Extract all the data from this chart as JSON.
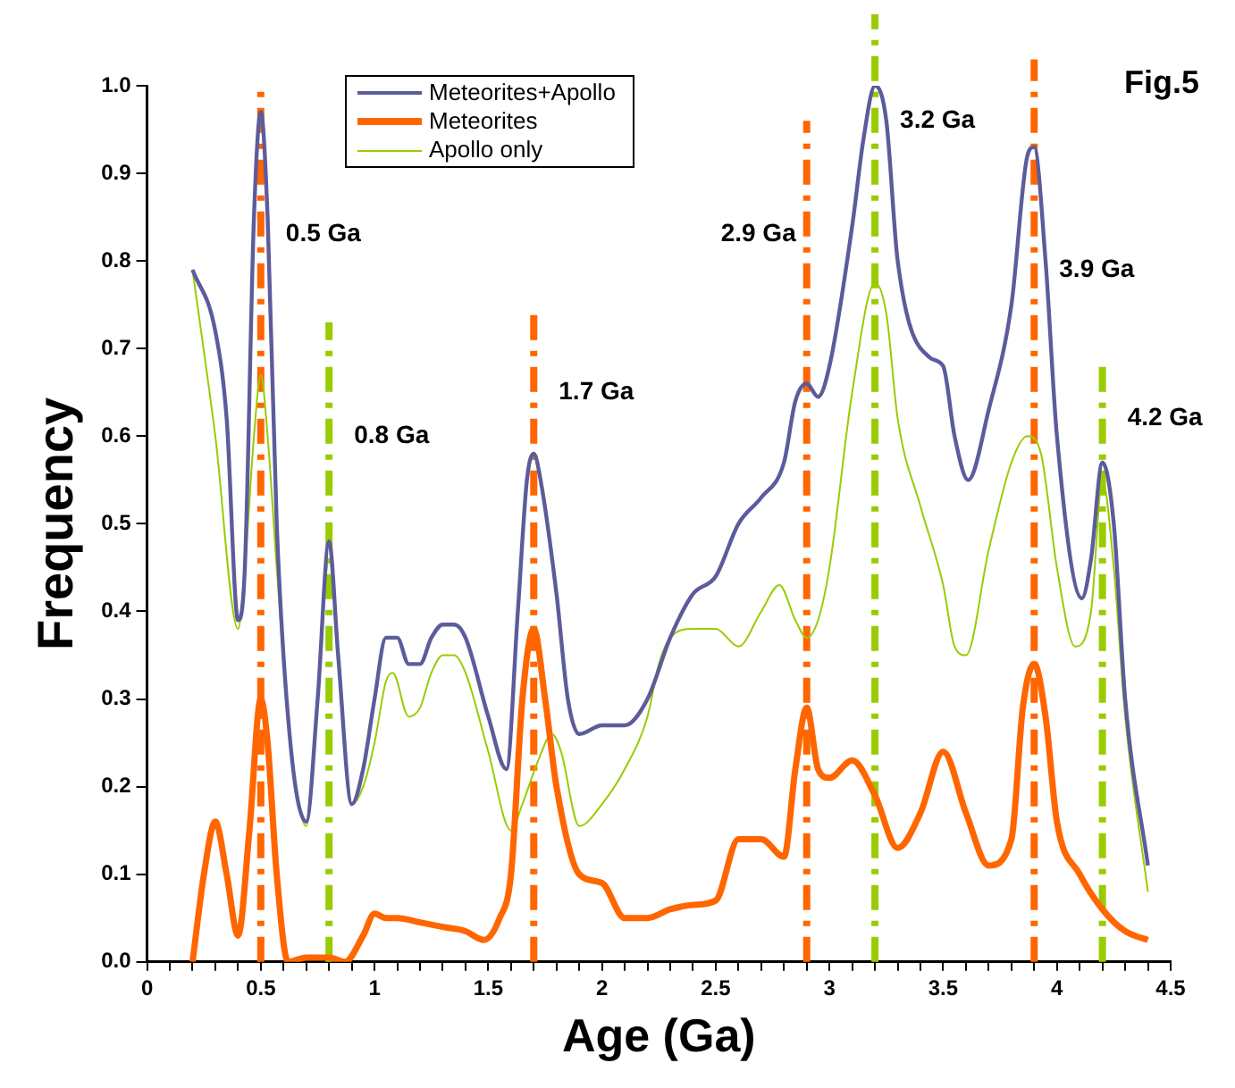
{
  "chart_data": {
    "type": "line",
    "title": "Fig.5",
    "xlabel": "Age (Ga)",
    "ylabel": "Frequency",
    "xlim": [
      0,
      4.5
    ],
    "ylim": [
      0,
      1.0
    ],
    "xticks": [
      0,
      {
        "value": 0.1,
        "label": null
      },
      {
        "value": 0.2,
        "label": null
      },
      {
        "value": 0.3,
        "label": null
      },
      {
        "value": 0.4,
        "label": null
      },
      0.5,
      {
        "value": 0.6,
        "label": null
      },
      {
        "value": 0.7,
        "label": null
      },
      {
        "value": 0.8,
        "label": null
      },
      {
        "value": 0.9,
        "label": null
      },
      1,
      {
        "value": 1.1,
        "label": null
      },
      {
        "value": 1.2,
        "label": null
      },
      {
        "value": 1.3,
        "label": null
      },
      {
        "value": 1.4,
        "label": null
      },
      1.5,
      {
        "value": 1.6,
        "label": null
      },
      {
        "value": 1.7,
        "label": null
      },
      {
        "value": 1.8,
        "label": null
      },
      {
        "value": 1.9,
        "label": null
      },
      2,
      {
        "value": 2.1,
        "label": null
      },
      {
        "value": 2.2,
        "label": null
      },
      {
        "value": 2.3,
        "label": null
      },
      {
        "value": 2.4,
        "label": null
      },
      2.5,
      {
        "value": 2.6,
        "label": null
      },
      {
        "value": 2.7,
        "label": null
      },
      {
        "value": 2.8,
        "label": null
      },
      {
        "value": 2.9,
        "label": null
      },
      3,
      {
        "value": 3.1,
        "label": null
      },
      {
        "value": 3.2,
        "label": null
      },
      {
        "value": 3.3,
        "label": null
      },
      {
        "value": 3.4,
        "label": null
      },
      3.5,
      {
        "value": 3.6,
        "label": null
      },
      {
        "value": 3.7,
        "label": null
      },
      {
        "value": 3.8,
        "label": null
      },
      {
        "value": 3.9,
        "label": null
      },
      4,
      {
        "value": 4.1,
        "label": null
      },
      {
        "value": 4.2,
        "label": null
      },
      {
        "value": 4.3,
        "label": null
      },
      {
        "value": 4.4,
        "label": null
      },
      4.5
    ],
    "yticks": [
      {
        "value": 0,
        "label": "0.0"
      },
      {
        "value": 0.1,
        "label": "0.1"
      },
      {
        "value": 0.2,
        "label": "0.2"
      },
      {
        "value": 0.3,
        "label": "0.3"
      },
      {
        "value": 0.4,
        "label": "0.4"
      },
      {
        "value": 0.5,
        "label": "0.5"
      },
      {
        "value": 0.6,
        "label": "0.6"
      },
      {
        "value": 0.7,
        "label": "0.7"
      },
      {
        "value": 0.8,
        "label": "0.8"
      },
      {
        "value": 0.9,
        "label": "0.9"
      },
      {
        "value": 1.0,
        "label": "1.0"
      }
    ],
    "grid": false,
    "legend": "top left",
    "marker": "none",
    "line_style": "solid",
    "series": [
      {
        "name": "Meteorites+Apollo",
        "color": "#5c5c9c",
        "x": [
          0.2,
          0.3,
          0.35,
          0.4,
          0.43,
          0.47,
          0.5,
          0.53,
          0.57,
          0.63,
          0.7,
          0.75,
          0.8,
          0.84,
          0.9,
          0.95,
          1.0,
          1.05,
          1.1,
          1.15,
          1.2,
          1.25,
          1.3,
          1.35,
          1.4,
          1.5,
          1.58,
          1.63,
          1.67,
          1.7,
          1.73,
          1.8,
          1.85,
          1.9,
          2.0,
          2.1,
          2.2,
          2.3,
          2.4,
          2.5,
          2.6,
          2.7,
          2.8,
          2.85,
          2.9,
          2.95,
          3.0,
          3.1,
          3.15,
          3.2,
          3.25,
          3.3,
          3.44,
          3.5,
          3.55,
          3.61,
          3.7,
          3.8,
          3.87,
          3.9,
          3.95,
          4.0,
          4.11,
          4.15,
          4.2,
          4.25,
          4.3,
          4.4
        ],
        "values": [
          0.79,
          0.72,
          0.62,
          0.39,
          0.45,
          0.85,
          0.97,
          0.85,
          0.5,
          0.25,
          0.16,
          0.3,
          0.48,
          0.35,
          0.18,
          0.22,
          0.3,
          0.37,
          0.37,
          0.34,
          0.34,
          0.37,
          0.385,
          0.385,
          0.37,
          0.28,
          0.22,
          0.4,
          0.55,
          0.58,
          0.55,
          0.42,
          0.3,
          0.26,
          0.27,
          0.27,
          0.3,
          0.37,
          0.42,
          0.44,
          0.5,
          0.53,
          0.57,
          0.64,
          0.66,
          0.645,
          0.68,
          0.84,
          0.94,
          1.0,
          0.96,
          0.8,
          0.69,
          0.68,
          0.6,
          0.55,
          0.63,
          0.75,
          0.92,
          0.93,
          0.8,
          0.6,
          0.415,
          0.46,
          0.57,
          0.5,
          0.3,
          0.11
        ]
      },
      {
        "name": "Meteorites",
        "color": "#ff6600",
        "x": [
          0.2,
          0.25,
          0.3,
          0.35,
          0.4,
          0.45,
          0.5,
          0.53,
          0.57,
          0.62,
          0.7,
          0.8,
          0.87,
          0.95,
          1.0,
          1.05,
          1.1,
          1.2,
          1.3,
          1.4,
          1.48,
          1.55,
          1.6,
          1.65,
          1.7,
          1.75,
          1.8,
          1.9,
          2.0,
          2.1,
          2.2,
          2.3,
          2.4,
          2.5,
          2.6,
          2.7,
          2.8,
          2.85,
          2.9,
          2.95,
          3.0,
          3.1,
          3.2,
          3.3,
          3.4,
          3.5,
          3.6,
          3.7,
          3.8,
          3.85,
          3.9,
          3.95,
          4.0,
          4.1,
          4.2,
          4.3,
          4.4
        ],
        "values": [
          0.0,
          0.1,
          0.16,
          0.1,
          0.03,
          0.15,
          0.3,
          0.25,
          0.1,
          0.0,
          0.005,
          0.005,
          0.0,
          0.03,
          0.055,
          0.05,
          0.05,
          0.045,
          0.04,
          0.035,
          0.025,
          0.05,
          0.1,
          0.3,
          0.38,
          0.3,
          0.2,
          0.1,
          0.09,
          0.05,
          0.05,
          0.06,
          0.065,
          0.07,
          0.14,
          0.14,
          0.12,
          0.22,
          0.29,
          0.22,
          0.21,
          0.23,
          0.19,
          0.13,
          0.17,
          0.24,
          0.17,
          0.11,
          0.14,
          0.29,
          0.34,
          0.28,
          0.16,
          0.1,
          0.06,
          0.035,
          0.025
        ]
      },
      {
        "name": "Apollo only",
        "color": "#99cc00",
        "x": [
          0.2,
          0.3,
          0.4,
          0.43,
          0.47,
          0.5,
          0.53,
          0.57,
          0.63,
          0.7,
          0.75,
          0.8,
          0.84,
          0.9,
          0.95,
          1.0,
          1.05,
          1.08,
          1.15,
          1.2,
          1.25,
          1.3,
          1.35,
          1.4,
          1.5,
          1.6,
          1.65,
          1.72,
          1.78,
          1.82,
          1.9,
          2.0,
          2.1,
          2.2,
          2.25,
          2.3,
          2.4,
          2.5,
          2.6,
          2.7,
          2.78,
          2.85,
          2.9,
          2.95,
          3.0,
          3.1,
          3.2,
          3.25,
          3.3,
          3.4,
          3.5,
          3.55,
          3.6,
          3.7,
          3.8,
          3.87,
          3.93,
          4.0,
          4.08,
          4.15,
          4.2,
          4.25,
          4.3,
          4.4
        ],
        "values": [
          0.79,
          0.6,
          0.38,
          0.45,
          0.6,
          0.67,
          0.6,
          0.45,
          0.25,
          0.155,
          0.3,
          0.46,
          0.35,
          0.18,
          0.2,
          0.25,
          0.32,
          0.33,
          0.28,
          0.29,
          0.33,
          0.35,
          0.35,
          0.33,
          0.24,
          0.15,
          0.18,
          0.23,
          0.26,
          0.24,
          0.155,
          0.18,
          0.22,
          0.28,
          0.34,
          0.37,
          0.38,
          0.38,
          0.36,
          0.4,
          0.43,
          0.39,
          0.37,
          0.39,
          0.45,
          0.65,
          0.775,
          0.74,
          0.62,
          0.52,
          0.43,
          0.36,
          0.35,
          0.47,
          0.57,
          0.6,
          0.58,
          0.45,
          0.36,
          0.4,
          0.55,
          0.45,
          0.28,
          0.08
        ]
      }
    ],
    "ref_lines": [
      {
        "axis": "x",
        "value": 0.5,
        "label": "0.5 Ga",
        "color": "#ff6600",
        "line_style": "dashdot"
      },
      {
        "axis": "x",
        "value": 0.8,
        "label": "0.8 Ga",
        "color": "#99cc00",
        "line_style": "dashdot"
      },
      {
        "axis": "x",
        "value": 1.7,
        "label": "1.7 Ga",
        "color": "#ff6600",
        "line_style": "dashdot"
      },
      {
        "axis": "x",
        "value": 2.9,
        "label": "2.9 Ga",
        "color": "#ff6600",
        "line_style": "dashdot"
      },
      {
        "axis": "x",
        "value": 3.2,
        "label": "3.2 Ga",
        "color": "#99cc00",
        "line_style": "dashdot"
      },
      {
        "axis": "x",
        "value": 3.9,
        "label": "3.9 Ga",
        "color": "#ff6600",
        "line_style": "dashdot"
      },
      {
        "axis": "x",
        "value": 4.2,
        "label": "4.2 Ga",
        "color": "#99cc00",
        "line_style": "dashdot"
      }
    ]
  }
}
